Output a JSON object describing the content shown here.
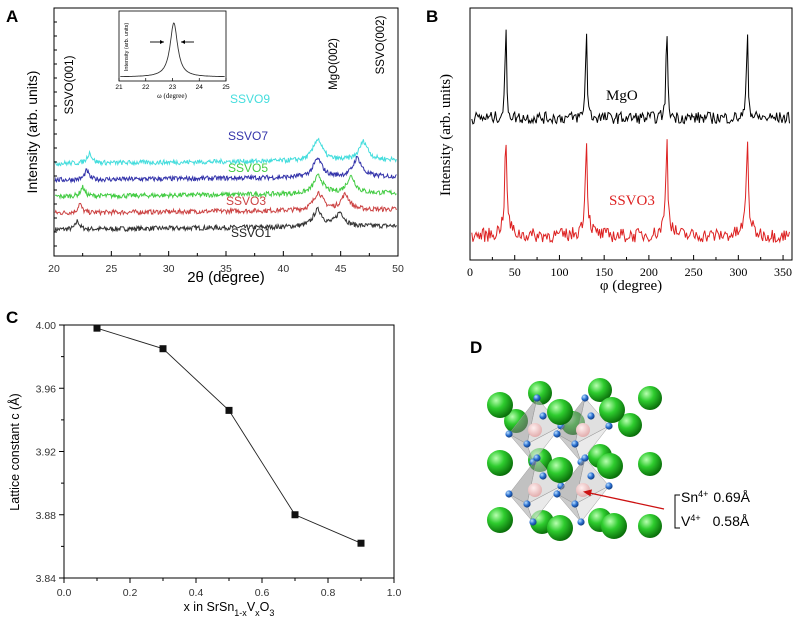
{
  "panels": {
    "a": "A",
    "b": "B",
    "c": "C",
    "d": "D"
  },
  "chart_data": [
    {
      "type": "line",
      "panel": "A",
      "xlabel": "2θ (degree)",
      "ylabel": "Intensity (arb. units)",
      "xlim": [
        20,
        50
      ],
      "xticks": [
        "20",
        "25",
        "30",
        "35",
        "40",
        "45",
        "50"
      ],
      "series": [
        {
          "name": "SSVO1",
          "color": "#333333",
          "offset": 0.0,
          "peaks": [
            [
              22.05,
              0.2,
              0.28
            ],
            [
              43.0,
              0.48,
              0.55
            ],
            [
              44.95,
              0.45,
              0.45
            ]
          ]
        },
        {
          "name": "SSVO3",
          "color": "#cc4444",
          "offset": 0.55,
          "peaks": [
            [
              22.25,
              0.2,
              0.3
            ],
            [
              43.05,
              0.48,
              0.58
            ],
            [
              45.4,
              0.45,
              0.5
            ]
          ]
        },
        {
          "name": "SSVO5",
          "color": "#44cc44",
          "offset": 1.1,
          "peaks": [
            [
              22.5,
              0.22,
              0.3
            ],
            [
              43.05,
              0.48,
              0.58
            ],
            [
              45.9,
              0.45,
              0.55
            ]
          ]
        },
        {
          "name": "SSVO7",
          "color": "#3333aa",
          "offset": 1.65,
          "peaks": [
            [
              22.85,
              0.22,
              0.3
            ],
            [
              43.0,
              0.48,
              0.6
            ],
            [
              46.45,
              0.45,
              0.62
            ]
          ]
        },
        {
          "name": "SSVO9",
          "color": "#44dddd",
          "offset": 2.2,
          "peaks": [
            [
              23.1,
              0.24,
              0.35
            ],
            [
              43.0,
              0.48,
              0.72
            ],
            [
              47.0,
              0.45,
              0.62
            ]
          ]
        }
      ],
      "annotations": [
        "SSVO(001)",
        "MgO(002)",
        "SSVO(002)"
      ],
      "inset": {
        "xlabel": "ω (degree)",
        "ylabel": "Intensity (arb. units)",
        "xlim": [
          21,
          25
        ],
        "xticks": [
          "21",
          "22",
          "23",
          "24",
          "25"
        ],
        "peak_center": 23.05
      }
    },
    {
      "type": "line",
      "panel": "B",
      "xlabel": "φ (degree)",
      "ylabel": "Intensity (arb. units)",
      "xlim": [
        0,
        360
      ],
      "xticks": [
        "0",
        "50",
        "100",
        "150",
        "200",
        "250",
        "300",
        "350"
      ],
      "series": [
        {
          "name": "MgO",
          "color": "#000000",
          "peaks": [
            40,
            130,
            220,
            310
          ]
        },
        {
          "name": "SSVO3",
          "color": "#dd2222",
          "peaks": [
            40,
            130,
            220,
            310
          ]
        }
      ]
    },
    {
      "type": "line",
      "panel": "C",
      "xlabel": "x in SrSn1-xVxO3",
      "xlabel_parts": {
        "base": "x in SrSn",
        "sub1": "1-x",
        "mid": "V",
        "sub2": "x",
        "o": "O",
        "sub3": "3"
      },
      "ylabel": "Lattice constant c (Å)",
      "xlim": [
        0.0,
        1.0
      ],
      "ylim": [
        3.84,
        4.0
      ],
      "xticks": [
        "0.0",
        "0.2",
        "0.4",
        "0.6",
        "0.8",
        "1.0"
      ],
      "yticks": [
        "3.84",
        "3.88",
        "3.92",
        "3.96",
        "4.00"
      ],
      "x": [
        0.1,
        0.3,
        0.5,
        0.7,
        0.9
      ],
      "y": [
        3.998,
        3.985,
        3.946,
        3.88,
        3.862
      ]
    }
  ],
  "structure": {
    "labels": [
      {
        "ion": "Sn",
        "charge": "4+",
        "radius": "0.69Å"
      },
      {
        "ion": "V",
        "charge": "4+",
        "radius": "0.58Å"
      }
    ],
    "colors": {
      "sr": "#22bb22",
      "oxygen": "#2a6fd0",
      "center": "#f0c8c8",
      "octahedron": "#a8a8a8",
      "arrow": "#cc1111"
    }
  }
}
